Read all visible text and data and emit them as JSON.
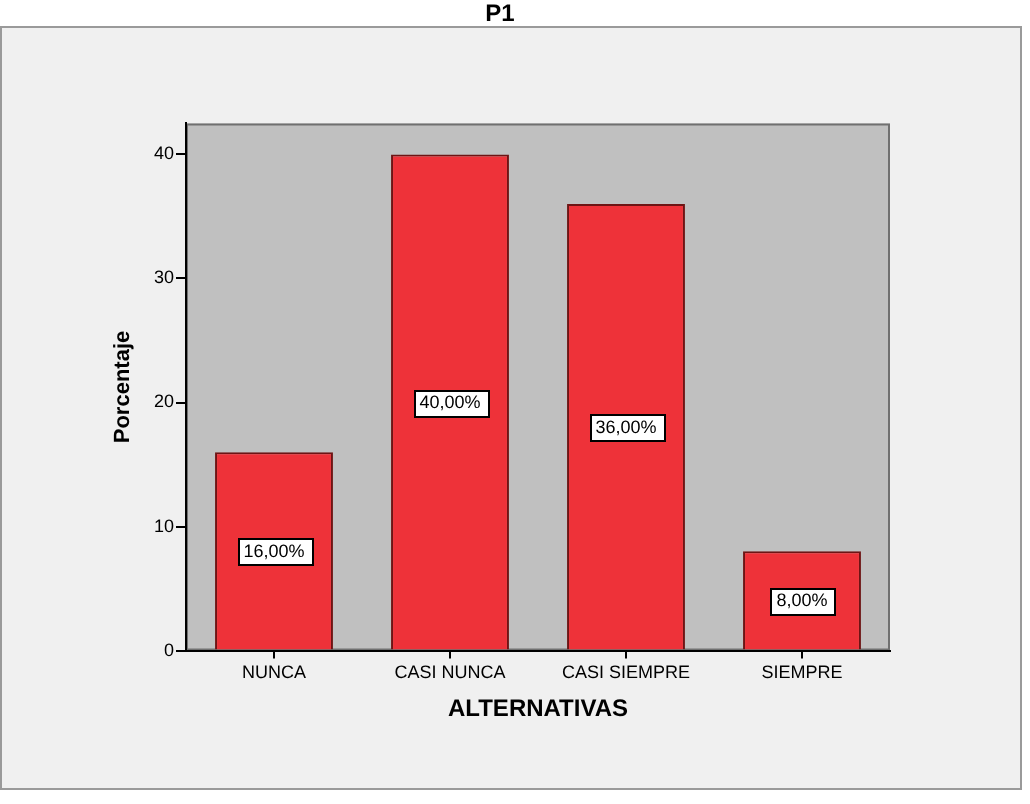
{
  "chart_data": {
    "type": "bar",
    "title": "P1",
    "xlabel": "ALTERNATIVAS",
    "ylabel": "Porcentaje",
    "categories": [
      "NUNCA",
      "CASI NUNCA",
      "CASI SIEMPRE",
      "SIEMPRE"
    ],
    "values": [
      16,
      40,
      36,
      8
    ],
    "color": "#ee3239",
    "value_labels": [
      "16,00%",
      "40,00%",
      "36,00%",
      "8,00%"
    ],
    "ylim": [
      0,
      42.5
    ],
    "yticks": [
      0,
      10,
      20,
      30,
      40
    ],
    "grid": false,
    "legend": false
  }
}
